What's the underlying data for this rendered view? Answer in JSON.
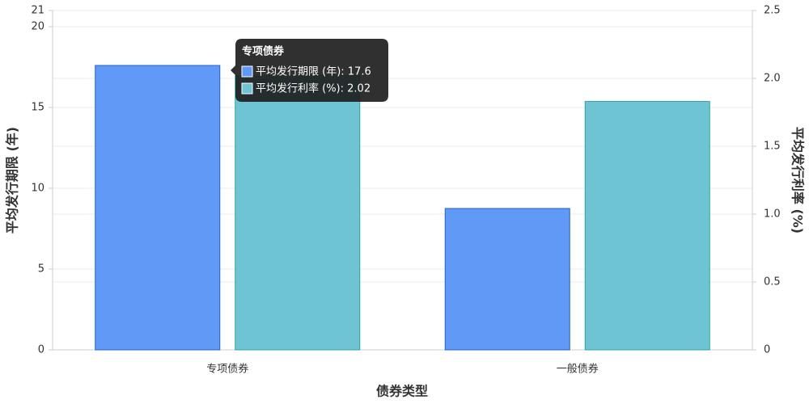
{
  "chart_data": {
    "type": "bar",
    "x_label": "债券类型",
    "y_label": "平均发行期限 (年)",
    "y2_label": "平均发行利率 (%)",
    "categories": [
      "专项债券",
      "一般债券"
    ],
    "series": [
      {
        "name": "平均发行期限 (年)",
        "color": "#6199f6",
        "stroke": "#2463c8",
        "values": [
          17.6,
          8.75
        ]
      },
      {
        "name": "平均发行利率 (%)",
        "color": "#6ec4d2",
        "stroke": "#2fa3ad",
        "axis": "y2",
        "values": [
          2.02,
          1.83
        ]
      }
    ],
    "ylim": [
      0,
      21
    ],
    "yticks": [
      0,
      5,
      10,
      15,
      20,
      21
    ],
    "y2lim": [
      0,
      2.5
    ],
    "y2ticks": [
      0,
      0.5,
      {
        "value": 1,
        "label": "1.0"
      },
      1.5,
      {
        "value": 2,
        "label": "2.0"
      },
      2.5
    ],
    "grid": true,
    "tooltip": {
      "title": "专项债券",
      "lines": [
        "平均发行期限 (年): 17.6",
        "平均发行利率 (%): 2.02"
      ]
    }
  }
}
